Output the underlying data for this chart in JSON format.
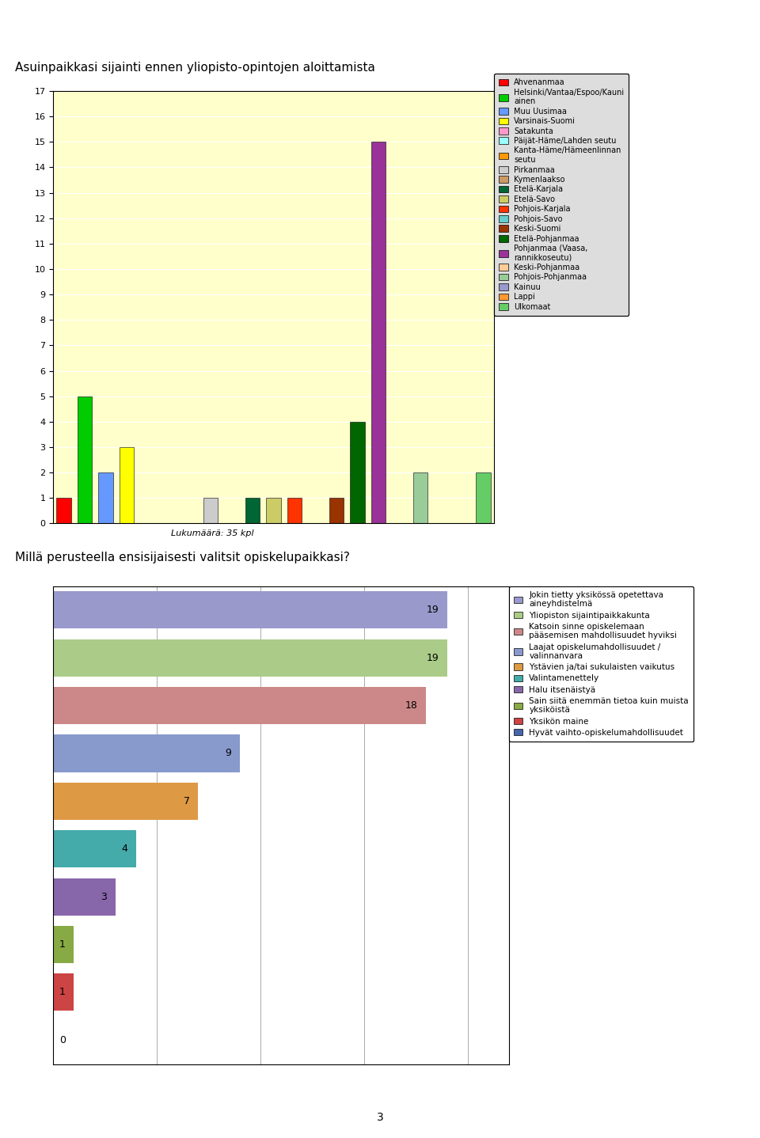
{
  "chart1": {
    "title": "Asuinpaikkasi sijainti ennen yliopisto-opintojen aloittamista",
    "subtitle": "Lukumäärä: 35 kpl",
    "ylim": [
      0,
      17
    ],
    "yticks": [
      0,
      1,
      2,
      3,
      4,
      5,
      6,
      7,
      8,
      9,
      10,
      11,
      12,
      13,
      14,
      15,
      16,
      17
    ],
    "background_color": "#ffffcc",
    "bars": [
      {
        "label": "Ahvenanmaa",
        "value": 1,
        "color": "#FF0000"
      },
      {
        "label": "Helsinki/Vantaa/Espoo/Kauniinen",
        "value": 5,
        "color": "#00CC00"
      },
      {
        "label": "Muu Uusimaa",
        "value": 2,
        "color": "#6699FF"
      },
      {
        "label": "Varsinais-Suomi",
        "value": 3,
        "color": "#FFFF00"
      },
      {
        "label": "Satakunta",
        "value": 0,
        "color": "#FF99CC"
      },
      {
        "label": "Päijät-Häme/Lahden seutu",
        "value": 0,
        "color": "#99FFFF"
      },
      {
        "label": "Kanta-Häme/Hämeenlinnan seutu",
        "value": 0,
        "color": "#FF9900"
      },
      {
        "label": "Pirkanmaa",
        "value": 1,
        "color": "#CCCCCC"
      },
      {
        "label": "Kymenlaakso",
        "value": 0,
        "color": "#CC9966"
      },
      {
        "label": "Etelä-Karjala",
        "value": 1,
        "color": "#006633"
      },
      {
        "label": "Etelä-Savo",
        "value": 1,
        "color": "#CCCC66"
      },
      {
        "label": "Pohjois-Karjala",
        "value": 1,
        "color": "#FF3300"
      },
      {
        "label": "Pohjois-Savo",
        "value": 0,
        "color": "#66CCCC"
      },
      {
        "label": "Keski-Suomi",
        "value": 1,
        "color": "#993300"
      },
      {
        "label": "Etelä-Pohjanmaa",
        "value": 4,
        "color": "#006600"
      },
      {
        "label": "Pohjanmaa (Vaasa, rannikkoseutu)",
        "value": 15,
        "color": "#993399"
      },
      {
        "label": "Keski-Pohjanmaa",
        "value": 0,
        "color": "#FFCC99"
      },
      {
        "label": "Pohjois-Pohjanmaa",
        "value": 2,
        "color": "#99CC99"
      },
      {
        "label": "Kainuu",
        "value": 0,
        "color": "#9999CC"
      },
      {
        "label": "Lappi",
        "value": 0,
        "color": "#FF9933"
      },
      {
        "label": "Ulkomaat",
        "value": 2,
        "color": "#66CC66"
      }
    ]
  },
  "chart2": {
    "title": "Millä perusteella ensisijaisesti valitsit opiskelupaikkasi?",
    "bars": [
      {
        "label": "Jokin tietty yksikössä opetettava aineyhdistelmä",
        "value": 19,
        "color": "#9999CC"
      },
      {
        "label": "Yliopiston sijaintipaikkakunta",
        "value": 19,
        "color": "#AACC88"
      },
      {
        "label": "Katsoin sinne opiskelemaan pääsemisen mahdollisuudet hyviksi",
        "value": 18,
        "color": "#CC8888"
      },
      {
        "label": "Laajat opiskelumahdollisuudet / valinnanvara",
        "value": 9,
        "color": "#8899CC"
      },
      {
        "label": "Ystävien ja/tai sukulaisten vaikutus",
        "value": 7,
        "color": "#DD9944"
      },
      {
        "label": "Valintamenettely",
        "value": 4,
        "color": "#44AAAA"
      },
      {
        "label": "Halu itsenäistyä",
        "value": 3,
        "color": "#8866AA"
      },
      {
        "label": "Sain siitä enemmän tietoa kuin muista yksiköistä",
        "value": 1,
        "color": "#88AA44"
      },
      {
        "label": "Yksikön maine",
        "value": 1,
        "color": "#CC4444"
      },
      {
        "label": "Hyvät vaihto-opiskelumahdollisuudet",
        "value": 0,
        "color": "#4466AA"
      }
    ],
    "legend_labels": [
      "Jokin tietty yksikössä opetettava\naineyhdistelmä",
      "Yliopiston sijaintipaikkakunta",
      "Katsoin sinne opiskelemaan\npääsemisen mahdollisuudet hyviksi",
      "Laajat opiskelumahdollisuudet /\nvalinnanvara",
      "Ystävien ja/tai sukulaisten vaikutus",
      "Valintamenettely",
      "Halu itsenäistyä",
      "Sain siitä enemmän tietoa kuin muista\nyksiköistä",
      "Yksikön maine",
      "Hyvät vaihto-opiskelumahdollisuudet"
    ]
  },
  "page_number": "3",
  "legend1_labels": [
    "Ahvenanmaa",
    "Helsinki/Vantaa/Espoo/Kauni\nainen",
    "Muu Uusimaa",
    "Varsinais-Suomi",
    "Satakunta",
    "Päijät-Häme/Lahden seutu",
    "Kanta-Häme/Hämeenlinnan\nseutu",
    "Pirkanmaa",
    "Kymenlaakso",
    "Etelä-Karjala",
    "Etelä-Savo",
    "Pohjois-Karjala",
    "Pohjois-Savo",
    "Keski-Suomi",
    "Etelä-Pohjanmaa",
    "Pohjanmaa (Vaasa,\nrannikkoseutu)",
    "Keski-Pohjanmaa",
    "Pohjois-Pohjanmaa",
    "Kainuu",
    "Lappi",
    "Ulkomaat"
  ]
}
